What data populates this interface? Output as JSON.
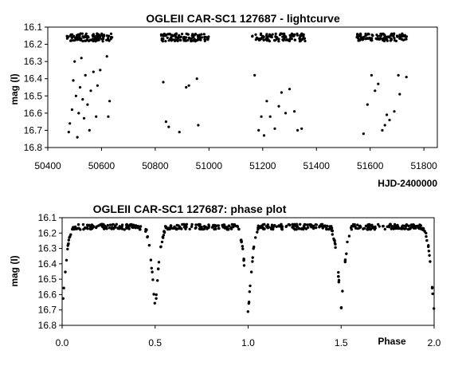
{
  "chart_data": [
    {
      "type": "scatter",
      "title": "OGLEII CAR-SC1 127687 - lightcurve",
      "xlabel": "HJD-2400000",
      "ylabel": "mag (I)",
      "xlim": [
        50400,
        51850
      ],
      "ylim": [
        16.8,
        16.1
      ],
      "y_inverted": true,
      "grid": false,
      "legend": "none",
      "marker_color": "#000000",
      "xticks": [
        "50400",
        "50600",
        "50800",
        "51000",
        "51200",
        "51400",
        "51600",
        "51800"
      ],
      "yticks": [
        "16.1",
        "16.2",
        "16.3",
        "16.4",
        "16.5",
        "16.6",
        "16.7",
        "16.8"
      ],
      "seasons": [
        {
          "x_range": [
            50470,
            50640
          ],
          "description_points": [
            [
              50478,
              16.71
            ],
            [
              50482,
              16.66
            ],
            [
              50490,
              16.58
            ],
            [
              50495,
              16.41
            ],
            [
              50500,
              16.3
            ],
            [
              50505,
              16.5
            ],
            [
              50510,
              16.74
            ],
            [
              50515,
              16.6
            ],
            [
              50520,
              16.45
            ],
            [
              50525,
              16.28
            ],
            [
              50530,
              16.52
            ],
            [
              50535,
              16.63
            ],
            [
              50540,
              16.38
            ],
            [
              50548,
              16.55
            ],
            [
              50555,
              16.7
            ],
            [
              50560,
              16.47
            ],
            [
              50570,
              16.36
            ],
            [
              50580,
              16.62
            ],
            [
              50585,
              16.44
            ],
            [
              50595,
              16.35
            ],
            [
              50620,
              16.27
            ],
            [
              50625,
              16.62
            ],
            [
              50630,
              16.53
            ]
          ]
        },
        {
          "x_range": [
            50820,
            51000
          ],
          "description_points": [
            [
              50830,
              16.42
            ],
            [
              50840,
              16.65
            ],
            [
              50850,
              16.68
            ],
            [
              50890,
              16.71
            ],
            [
              50915,
              16.45
            ],
            [
              50925,
              16.44
            ],
            [
              50955,
              16.4
            ],
            [
              50960,
              16.67
            ]
          ]
        },
        {
          "x_range": [
            51160,
            51360
          ],
          "description_points": [
            [
              51170,
              16.38
            ],
            [
              51185,
              16.7
            ],
            [
              51195,
              16.62
            ],
            [
              51205,
              16.73
            ],
            [
              51215,
              16.53
            ],
            [
              51228,
              16.62
            ],
            [
              51245,
              16.69
            ],
            [
              51260,
              16.56
            ],
            [
              51270,
              16.48
            ],
            [
              51285,
              16.6
            ],
            [
              51300,
              16.46
            ],
            [
              51318,
              16.59
            ],
            [
              51330,
              16.7
            ],
            [
              51345,
              16.69
            ]
          ]
        },
        {
          "x_range": [
            51550,
            51740
          ],
          "description_points": [
            [
              51575,
              16.72
            ],
            [
              51590,
              16.55
            ],
            [
              51605,
              16.38
            ],
            [
              51618,
              16.47
            ],
            [
              51630,
              16.43
            ],
            [
              51645,
              16.7
            ],
            [
              51655,
              16.67
            ],
            [
              51662,
              16.61
            ],
            [
              51672,
              16.64
            ],
            [
              51690,
              16.59
            ],
            [
              51705,
              16.38
            ],
            [
              51710,
              16.49
            ],
            [
              51735,
              16.39
            ]
          ]
        }
      ],
      "baseline_mag": 16.16
    },
    {
      "type": "scatter",
      "title": "OGLEII CAR-SC1 127687: phase plot",
      "xlabel": "Phase",
      "ylabel": "mag (I)",
      "xlim": [
        0.0,
        2.0
      ],
      "ylim": [
        16.8,
        16.1
      ],
      "y_inverted": true,
      "grid": false,
      "legend": "none",
      "marker_color": "#000000",
      "xticks": [
        "0.0",
        "0.5",
        "1.0",
        "1.5",
        "2.0"
      ],
      "yticks": [
        "16.1",
        "16.2",
        "16.3",
        "16.4",
        "16.5",
        "16.6",
        "16.7",
        "16.8"
      ],
      "curve": {
        "baseline_mag": 16.16,
        "out_of_eclipse_max": 16.15,
        "primary_minimum": {
          "phase": 0.0,
          "mag": 16.73
        },
        "secondary_minimum": {
          "phase": 0.5,
          "mag": 16.71
        },
        "eclipse_half_width_phase": 0.065,
        "period_phase": 1.0
      }
    }
  ]
}
